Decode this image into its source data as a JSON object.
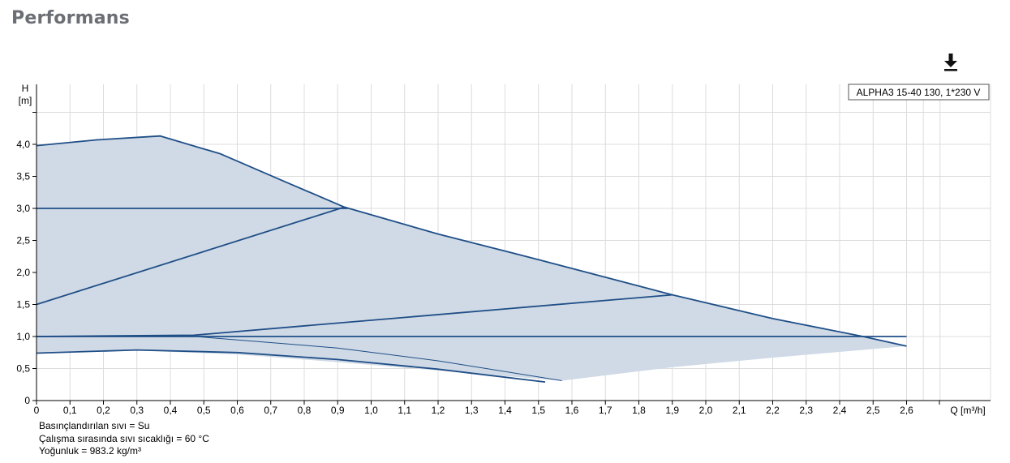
{
  "header": {
    "title": "Performans"
  },
  "toolbar": {
    "download_icon": "download-icon"
  },
  "chart_data": {
    "type": "line",
    "ylabel_line1": "H",
    "ylabel_line2": "[m]",
    "xlabel": "Q [m³/h]",
    "legend": "ALPHA3 15-40 130, 1*230 V",
    "xlim": [
      0,
      2.65
    ],
    "ylim": [
      0,
      4.9
    ],
    "x_ticks": [
      0,
      0.1,
      0.2,
      0.3,
      0.4,
      0.5,
      0.6,
      0.7,
      0.8,
      0.9,
      1.0,
      1.1,
      1.2,
      1.3,
      1.4,
      1.5,
      1.6,
      1.7,
      1.8,
      1.9,
      2.0,
      2.1,
      2.2,
      2.3,
      2.4,
      2.5,
      2.6
    ],
    "x_tick_labels": [
      "0",
      "0,1",
      "0,2",
      "0,3",
      "0,4",
      "0,5",
      "0,6",
      "0,7",
      "0,8",
      "0,9",
      "1,0",
      "1,1",
      "1,2",
      "1,3",
      "1,4",
      "1,5",
      "1,6",
      "1,7",
      "1,8",
      "1,9",
      "2,0",
      "2,1",
      "2,2",
      "2,3",
      "2,4",
      "2,5",
      "2,6"
    ],
    "y_ticks": [
      0,
      0.5,
      1.0,
      1.5,
      2.0,
      2.5,
      3.0,
      3.5,
      4.0
    ],
    "y_tick_labels": [
      "0",
      "0,5",
      "1,0",
      "1,5",
      "2,0",
      "2,5",
      "3,0",
      "3,5",
      "4,0"
    ],
    "area": {
      "color": "#cfdae6",
      "points": [
        [
          0,
          3.98
        ],
        [
          0.18,
          4.07
        ],
        [
          0.37,
          4.13
        ],
        [
          0.55,
          3.85
        ],
        [
          0.75,
          3.4
        ],
        [
          0.92,
          3.02
        ],
        [
          1.2,
          2.6
        ],
        [
          1.5,
          2.2
        ],
        [
          1.9,
          1.65
        ],
        [
          2.2,
          1.28
        ],
        [
          2.47,
          1.0
        ],
        [
          2.6,
          0.85
        ],
        [
          2.2,
          0.67
        ],
        [
          1.9,
          0.52
        ],
        [
          1.57,
          0.31
        ],
        [
          1.2,
          0.47
        ],
        [
          0.9,
          0.6
        ],
        [
          0.6,
          0.72
        ],
        [
          0.3,
          0.78
        ],
        [
          0.1,
          0.77
        ],
        [
          0,
          0.74
        ]
      ]
    },
    "series": [
      {
        "id": "max-curve",
        "points": [
          [
            0,
            3.98
          ],
          [
            0.18,
            4.07
          ],
          [
            0.37,
            4.13
          ],
          [
            0.55,
            3.85
          ],
          [
            0.75,
            3.4
          ],
          [
            0.92,
            3.02
          ],
          [
            1.2,
            2.6
          ],
          [
            1.5,
            2.2
          ],
          [
            1.9,
            1.65
          ],
          [
            2.2,
            1.28
          ],
          [
            2.47,
            1.0
          ],
          [
            2.6,
            0.85
          ]
        ]
      },
      {
        "id": "constant-3m",
        "points": [
          [
            0,
            3.0
          ],
          [
            0.93,
            3.0
          ]
        ]
      },
      {
        "id": "proportional-high",
        "points": [
          [
            0,
            1.5
          ],
          [
            0.92,
            3.02
          ]
        ]
      },
      {
        "id": "proportional-mid",
        "points": [
          [
            0,
            1.0
          ],
          [
            0.47,
            1.02
          ],
          [
            1.9,
            1.65
          ]
        ]
      },
      {
        "id": "constant-1m",
        "points": [
          [
            0,
            1.0
          ],
          [
            2.6,
            1.0
          ]
        ]
      },
      {
        "id": "min-curve",
        "points": [
          [
            0,
            0.74
          ],
          [
            0.3,
            0.79
          ],
          [
            0.6,
            0.75
          ],
          [
            0.9,
            0.64
          ],
          [
            1.2,
            0.49
          ],
          [
            1.52,
            0.29
          ]
        ]
      },
      {
        "id": "min-constant-tail",
        "points": [
          [
            0.45,
            1.01
          ],
          [
            0.9,
            0.82
          ],
          [
            1.2,
            0.62
          ],
          [
            1.57,
            0.31
          ]
        ]
      }
    ],
    "line_color": "#1f4e87",
    "grid": true
  },
  "notes": {
    "fluid": "Basınçlandırılan sıvı = Su",
    "temperature": "Çalışma sırasında sıvı sıcaklığı = 60 °C",
    "density": "Yoğunluk = 983.2 kg/m³"
  }
}
